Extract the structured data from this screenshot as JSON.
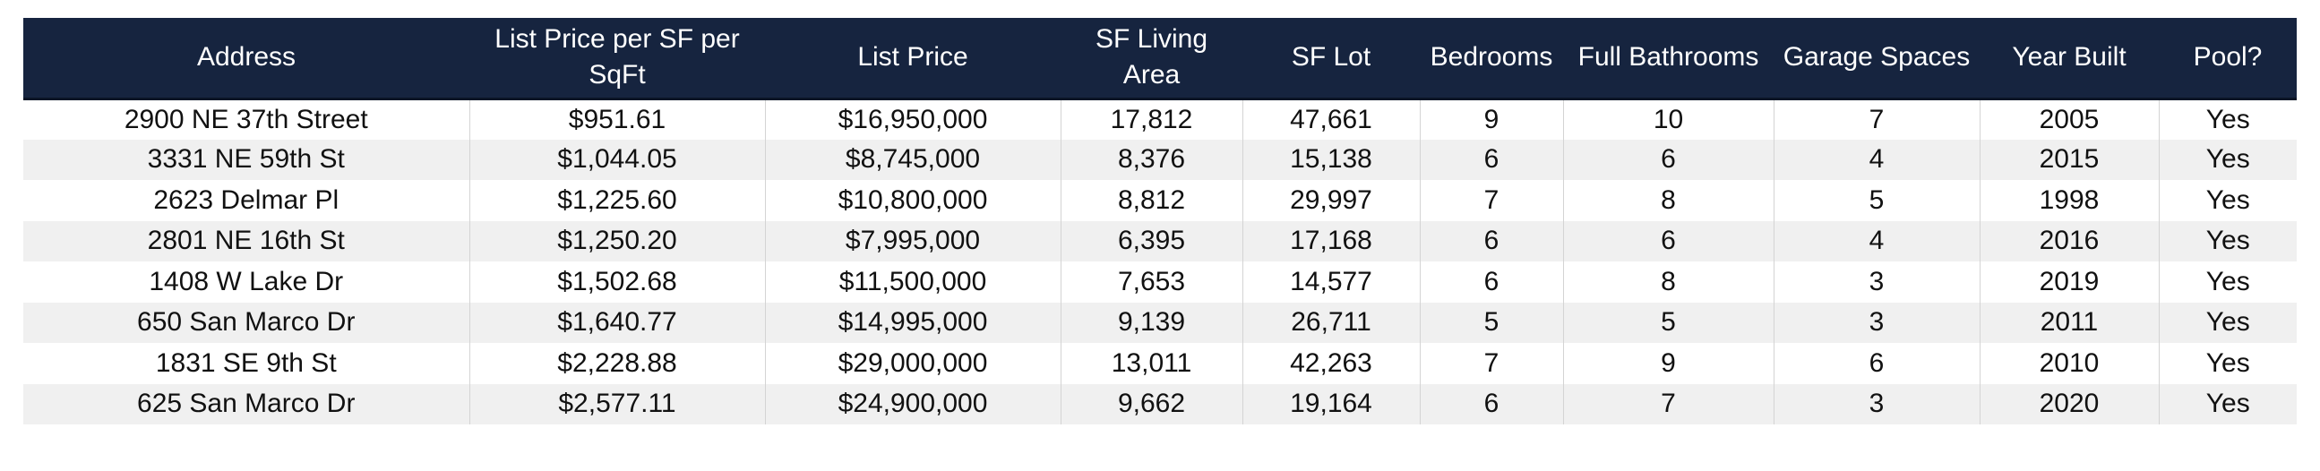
{
  "table": {
    "headers": [
      "Address",
      "List Price per SF per SqFt",
      "List Price",
      "SF Living Area",
      "SF Lot",
      "Bedrooms",
      "Full Bathrooms",
      "Garage Spaces",
      "Year Built",
      "Pool?"
    ],
    "rows": [
      [
        "2900 NE 37th Street",
        "$951.61",
        "$16,950,000",
        "17,812",
        "47,661",
        "9",
        "10",
        "7",
        "2005",
        "Yes"
      ],
      [
        "3331 NE 59th St",
        "$1,044.05",
        "$8,745,000",
        "8,376",
        "15,138",
        "6",
        "6",
        "4",
        "2015",
        "Yes"
      ],
      [
        "2623 Delmar Pl",
        "$1,225.60",
        "$10,800,000",
        "8,812",
        "29,997",
        "7",
        "8",
        "5",
        "1998",
        "Yes"
      ],
      [
        "2801 NE 16th St",
        "$1,250.20",
        "$7,995,000",
        "6,395",
        "17,168",
        "6",
        "6",
        "4",
        "2016",
        "Yes"
      ],
      [
        "1408 W Lake Dr",
        "$1,502.68",
        "$11,500,000",
        "7,653",
        "14,577",
        "6",
        "8",
        "3",
        "2019",
        "Yes"
      ],
      [
        "650 San Marco Dr",
        "$1,640.77",
        "$14,995,000",
        "9,139",
        "26,711",
        "5",
        "5",
        "3",
        "2011",
        "Yes"
      ],
      [
        "1831 SE 9th St",
        "$2,228.88",
        "$29,000,000",
        "13,011",
        "42,263",
        "7",
        "9",
        "6",
        "2010",
        "Yes"
      ],
      [
        "625 San Marco Dr",
        "$2,577.11",
        "$24,900,000",
        "9,662",
        "19,164",
        "6",
        "7",
        "3",
        "2020",
        "Yes"
      ]
    ]
  }
}
